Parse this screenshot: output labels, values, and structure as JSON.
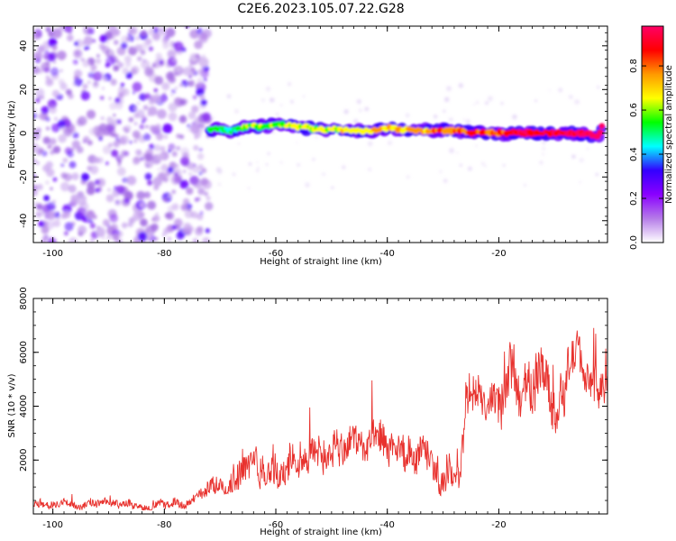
{
  "figure_title": "C2E6.2023.105.07.22.G28",
  "chart_data": [
    {
      "type": "heatmap",
      "title": "C2E6.2023.105.07.22.G28",
      "xlabel": "Height of straight line (km)",
      "ylabel": "Frequency (Hz)",
      "xlim": [
        -103.5,
        -0.5
      ],
      "ylim": [
        -50,
        49
      ],
      "xticks": [
        -100,
        -80,
        -60,
        -40,
        -20
      ],
      "yticks": [
        -40,
        -20,
        0,
        20,
        40
      ],
      "colorbar": {
        "label": "Normalized spectral amplitude",
        "range": [
          0,
          0.98
        ],
        "ticks": [
          0.0,
          0.2,
          0.4,
          0.6,
          0.8
        ],
        "colormap": [
          "#ffffff",
          "#b57be8",
          "#8a00ff",
          "#3300ff",
          "#00ffff",
          "#00ff00",
          "#ffff00",
          "#ff9900",
          "#ff0000",
          "#ff0066"
        ]
      },
      "noise_region_x": [
        -103.5,
        -72
      ],
      "trace": {
        "x": [
          -72,
          -70,
          -68,
          -66,
          -64,
          -62,
          -60,
          -58,
          -56,
          -54,
          -52,
          -50,
          -48,
          -46,
          -44,
          -42,
          -40,
          -38,
          -36,
          -34,
          -32,
          -30,
          -28,
          -26,
          -24,
          -22,
          -20,
          -18,
          -16,
          -14,
          -12,
          -10,
          -8,
          -6,
          -4,
          -2,
          -1.5
        ],
        "y": [
          1.5,
          2,
          1,
          2.5,
          3.5,
          3,
          4,
          3.5,
          3,
          2.5,
          1.5,
          1.8,
          1.5,
          1.2,
          0.8,
          1.5,
          2.3,
          2,
          1.5,
          1.2,
          1,
          1.4,
          1.2,
          0.8,
          0.3,
          0.2,
          0.1,
          0.1,
          0.2,
          0,
          0.1,
          0.2,
          0.1,
          0.1,
          0,
          -2,
          3
        ]
      }
    },
    {
      "type": "line",
      "xlabel": "Height of straight line (km)",
      "ylabel": "SNR (10 * v/v)",
      "xlim": [
        -103.5,
        -0.5
      ],
      "ylim": [
        0,
        8000
      ],
      "xticks": [
        -100,
        -80,
        -60,
        -40,
        -20
      ],
      "yticks": [
        2000,
        4000,
        6000,
        8000
      ],
      "line_color": "#e8322e",
      "envelope": {
        "x": [
          -103.5,
          -90,
          -80,
          -75,
          -72,
          -70,
          -68,
          -67,
          -65,
          -63,
          -61,
          -58,
          -55,
          -52,
          -50,
          -48,
          -46,
          -44,
          -42,
          -40,
          -38,
          -36,
          -34,
          -32,
          -30,
          -28,
          -27,
          -26,
          -24,
          -22,
          -20,
          -18,
          -16,
          -14,
          -13,
          -12,
          -11,
          -10,
          -8,
          -6,
          -4,
          -2,
          -0.5
        ],
        "base": [
          150,
          150,
          150,
          200,
          400,
          700,
          800,
          900,
          900,
          700,
          900,
          1000,
          1200,
          1100,
          1300,
          1200,
          1500,
          1200,
          1500,
          1400,
          1200,
          1000,
          1200,
          1000,
          600,
          800,
          1000,
          3000,
          3100,
          3000,
          2800,
          3300,
          3500,
          3500,
          4000,
          4500,
          4000,
          2500,
          3500,
          5000,
          3500,
          3800,
          4000
        ],
        "amp": [
          400,
          400,
          400,
          500,
          800,
          1100,
          1600,
          2000,
          1800,
          1900,
          1900,
          1700,
          1800,
          2000,
          2100,
          2000,
          1900,
          1800,
          2000,
          1800,
          1900,
          2000,
          1600,
          1600,
          1800,
          1500,
          1800,
          2400,
          2200,
          2000,
          2400,
          2700,
          2800,
          2900,
          3100,
          2800,
          2700,
          2500,
          2500,
          1800,
          2200,
          2000,
          1800
        ]
      }
    }
  ]
}
